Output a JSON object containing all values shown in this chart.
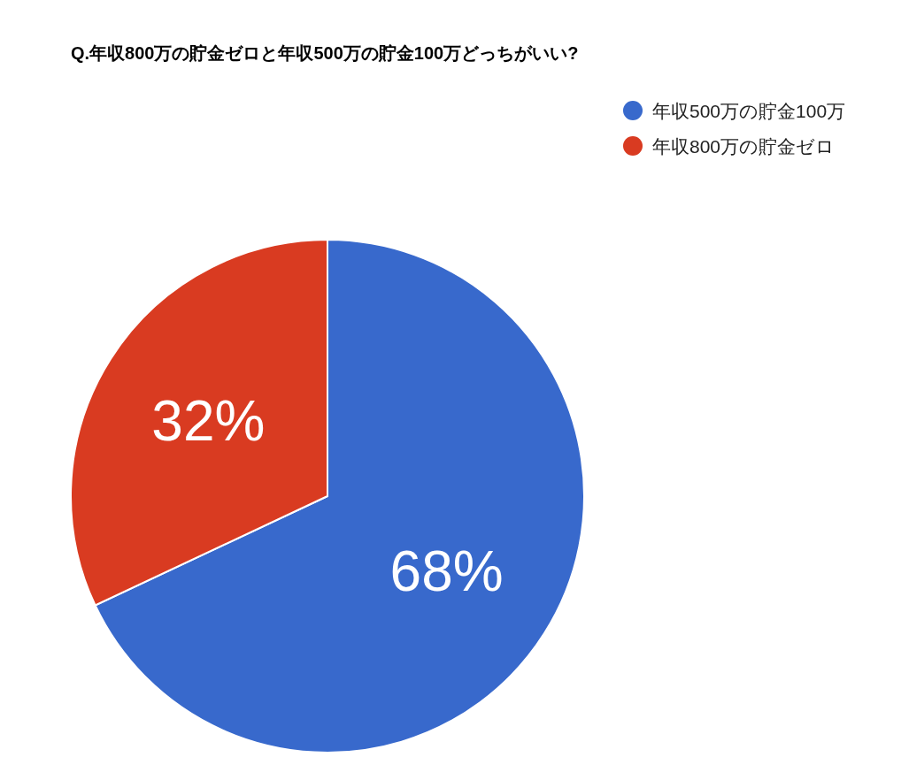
{
  "chart_data": {
    "type": "pie",
    "title": "Q.年収800万の貯金ゼロと年収500万の貯金100万どっちがいい?",
    "categories": [
      "年収500万の貯金100万",
      "年収800万の貯金ゼロ"
    ],
    "values": [
      68,
      32
    ],
    "colors": [
      "#3869cc",
      "#d93b21"
    ],
    "value_labels": [
      "68%",
      "32%"
    ],
    "legend": "top right"
  }
}
